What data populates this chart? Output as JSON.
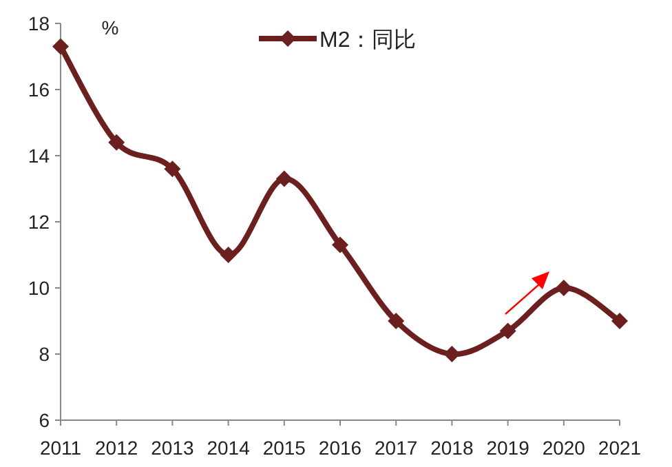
{
  "chart_data": {
    "type": "line",
    "ylabel": "%",
    "categories": [
      "2011",
      "2012",
      "2013",
      "2014",
      "2015",
      "2016",
      "2017",
      "2018",
      "2019",
      "2020",
      "2021"
    ],
    "series": [
      {
        "name": "M2：同比",
        "color": "#6b1f1f",
        "values": [
          17.3,
          14.4,
          13.6,
          11.0,
          13.3,
          11.3,
          9.0,
          8.0,
          8.7,
          10.0,
          9.0
        ]
      }
    ],
    "ylim": [
      6,
      18
    ],
    "yticks": [
      6,
      8,
      10,
      12,
      14,
      16,
      18
    ],
    "grid": false,
    "legend": "top",
    "marker": "diamond",
    "line_style": "solid"
  }
}
